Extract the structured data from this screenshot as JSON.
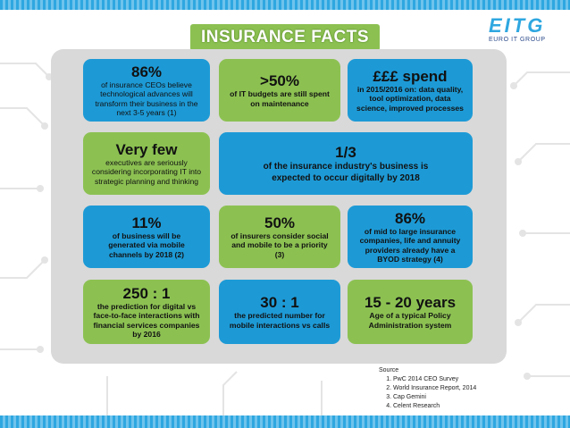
{
  "title": "INSURANCE FACTS",
  "logo": {
    "mark": "EITG",
    "subtitle": "EURO IT GROUP"
  },
  "cards": [
    {
      "big": "86%",
      "text": "of insurance CEOs believe technological advances will transform their business in the next 3-5 years (1)"
    },
    {
      "big": ">50%",
      "text": "of IT budgets are still spent on maintenance"
    },
    {
      "big": "£££ spend",
      "text": "in 2015/2016 on: data quality, tool optimization, data science, improved processes"
    },
    {
      "big": "Very few",
      "text": "executives are seriously considering incorporating IT into strategic planning and thinking"
    },
    {
      "big": "1/3",
      "text": "of the insurance industry's business is expected to occur digitally by 2018"
    },
    {
      "big": "11%",
      "text": "of business will be generated via mobile channels by 2018 (2)"
    },
    {
      "big": "50%",
      "text": "of insurers consider social and mobile to be a priority (3)"
    },
    {
      "big": "86%",
      "text": "of mid to large insurance companies, life and annuity providers already have a BYOD strategy (4)"
    },
    {
      "big": "250 : 1",
      "text": "the prediction for digital vs face-to-face interactions with financial services companies by 2016"
    },
    {
      "big": "30 : 1",
      "text": "the predicted number for mobile interactions vs calls"
    },
    {
      "big": "15 - 20 years",
      "text": "Age of a typical Policy Administration system"
    }
  ],
  "sources": {
    "heading": "Source",
    "items": [
      "PwC 2014 CEO Survey",
      "World Insurance Report, 2014",
      "Cap Gemini",
      "Celent Research"
    ]
  },
  "colors": {
    "blue": "#1d9ad6",
    "green": "#8cc152",
    "panel": "#d9d9d9"
  }
}
